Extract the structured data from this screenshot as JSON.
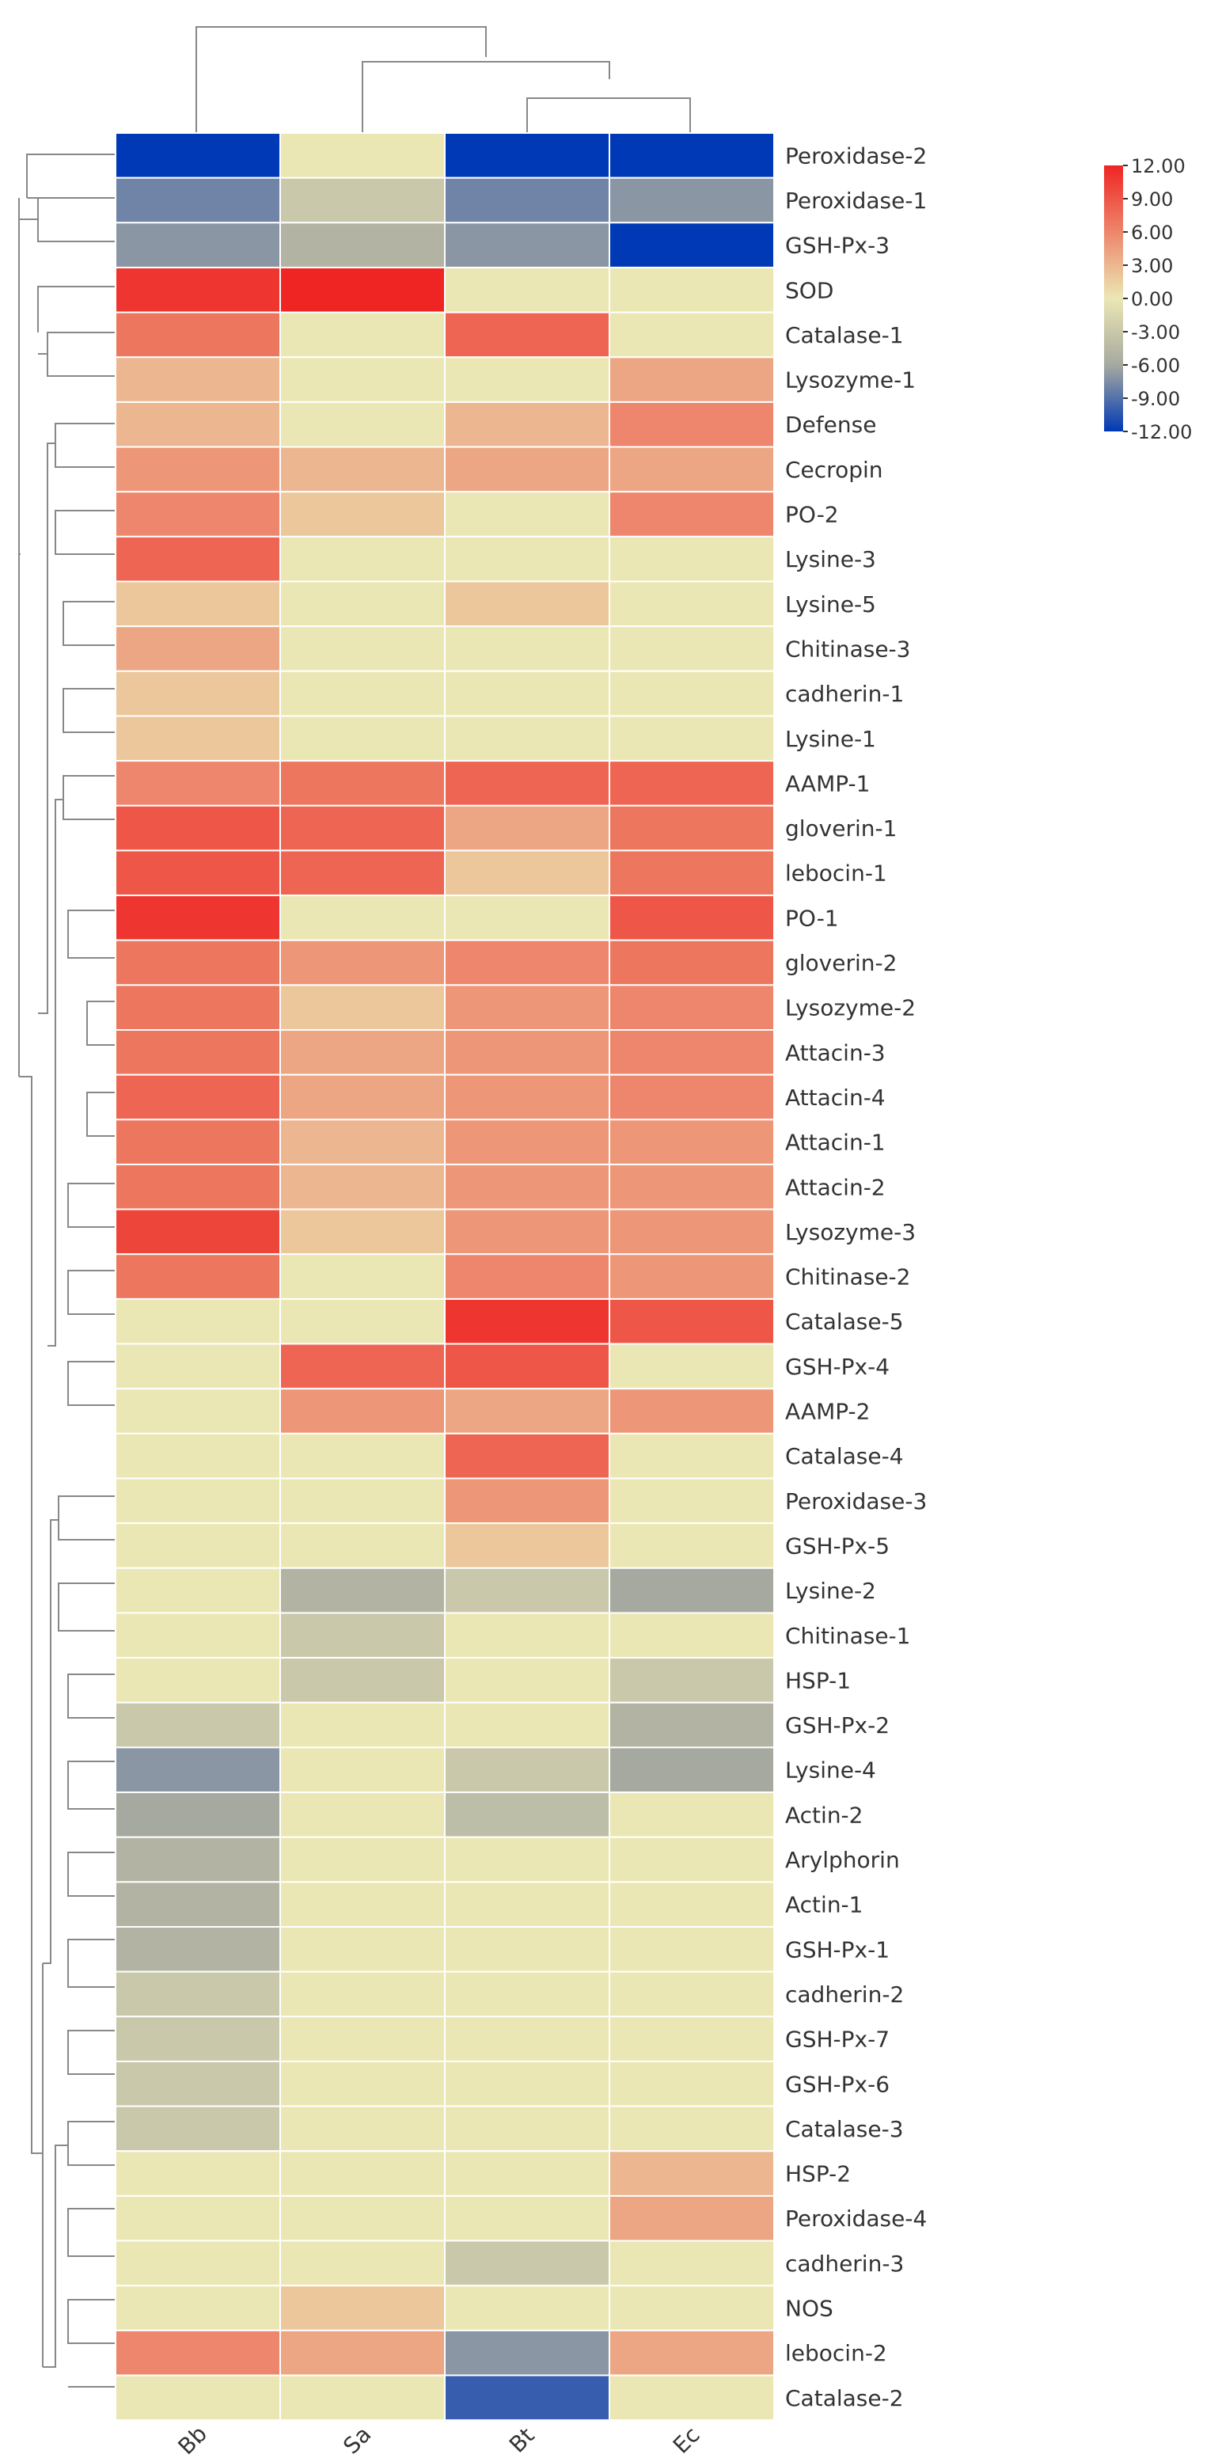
{
  "chart_data": {
    "type": "heatmap",
    "title": "",
    "columns": [
      "Bb",
      "Sa",
      "Bt",
      "Ec"
    ],
    "rows": [
      "Peroxidase-2",
      "Peroxidase-1",
      "GSH-Px-3",
      "SOD",
      "Catalase-1",
      "Lysozyme-1",
      "Defense",
      "Cecropin",
      "PO-2",
      "Lysine-3",
      "Lysine-5",
      "Chitinase-3",
      "cadherin-1",
      "Lysine-1",
      "AAMP-1",
      "gloverin-1",
      "lebocin-1",
      "PO-1",
      "gloverin-2",
      "Lysozyme-2",
      "Attacin-3",
      "Attacin-4",
      "Attacin-1",
      "Attacin-2",
      "Lysozyme-3",
      "Chitinase-2",
      "Catalase-5",
      "GSH-Px-4",
      "AAMP-2",
      "Catalase-4",
      "Peroxidase-3",
      "GSH-Px-5",
      "Lysine-2",
      "Chitinase-1",
      "HSP-1",
      "GSH-Px-2",
      "Lysine-4",
      "Actin-2",
      "Arylphorin",
      "Actin-1",
      "GSH-Px-1",
      "cadherin-2",
      "GSH-Px-7",
      "GSH-Px-6",
      "Catalase-3",
      "HSP-2",
      "Peroxidase-4",
      "cadherin-3",
      "NOS",
      "lebocin-2",
      "Catalase-2"
    ],
    "values": [
      [
        -12,
        0,
        -12,
        -12
      ],
      [
        -8,
        -3,
        -8,
        -7
      ],
      [
        -7,
        -5,
        -7,
        -12
      ],
      [
        11,
        12,
        0,
        0
      ],
      [
        7,
        0,
        8,
        0
      ],
      [
        3,
        0,
        0,
        4
      ],
      [
        3,
        0,
        3,
        6
      ],
      [
        5,
        3,
        4,
        4
      ],
      [
        6,
        2,
        0,
        6
      ],
      [
        8,
        0,
        0,
        0
      ],
      [
        2,
        0,
        2,
        0
      ],
      [
        4,
        0,
        0,
        0
      ],
      [
        2,
        0,
        0,
        0
      ],
      [
        2,
        0,
        0,
        0
      ],
      [
        6,
        7,
        8,
        8
      ],
      [
        9,
        8,
        4,
        7
      ],
      [
        9,
        8,
        2,
        7
      ],
      [
        11,
        0,
        0,
        9
      ],
      [
        7,
        5,
        6,
        7
      ],
      [
        7,
        2,
        5,
        6
      ],
      [
        7,
        4,
        5,
        6
      ],
      [
        8,
        4,
        5,
        6
      ],
      [
        7,
        3,
        5,
        5
      ],
      [
        7,
        3,
        5,
        5
      ],
      [
        10,
        2,
        5,
        5
      ],
      [
        7,
        0,
        6,
        5
      ],
      [
        0,
        0,
        11,
        9
      ],
      [
        0,
        8,
        9,
        0
      ],
      [
        0,
        5,
        4,
        5
      ],
      [
        0,
        0,
        8,
        0
      ],
      [
        0,
        0,
        5,
        0
      ],
      [
        0,
        0,
        2,
        0
      ],
      [
        0,
        -5,
        -3,
        -6
      ],
      [
        0,
        -3,
        0,
        0
      ],
      [
        0,
        -3,
        0,
        -3
      ],
      [
        -3,
        0,
        0,
        -5
      ],
      [
        -7,
        0,
        -3,
        -6
      ],
      [
        -6,
        0,
        -4,
        0
      ],
      [
        -5,
        0,
        0,
        0
      ],
      [
        -5,
        0,
        0,
        0
      ],
      [
        -5,
        0,
        0,
        0
      ],
      [
        -3,
        0,
        0,
        0
      ],
      [
        -3,
        0,
        0,
        0
      ],
      [
        -3,
        0,
        0,
        0
      ],
      [
        -3,
        0,
        0,
        0
      ],
      [
        0,
        0,
        0,
        3
      ],
      [
        0,
        0,
        0,
        4
      ],
      [
        0,
        0,
        -3,
        0
      ],
      [
        0,
        2,
        0,
        0
      ],
      [
        6,
        4,
        -7,
        4
      ],
      [
        0,
        0,
        -10,
        0
      ]
    ],
    "color_scale": {
      "min": -12,
      "max": 12,
      "tick_labels": [
        "12.00",
        "9.00",
        "6.00",
        "3.00",
        "0.00",
        "-3.00",
        "-6.00",
        "-9.00",
        "-12.00"
      ],
      "colors": [
        "#0039b5",
        "#ebe7b4",
        "#ef2523"
      ]
    },
    "dendrograms": {
      "column": "top",
      "row": "left"
    },
    "legend_position": "top-right"
  }
}
